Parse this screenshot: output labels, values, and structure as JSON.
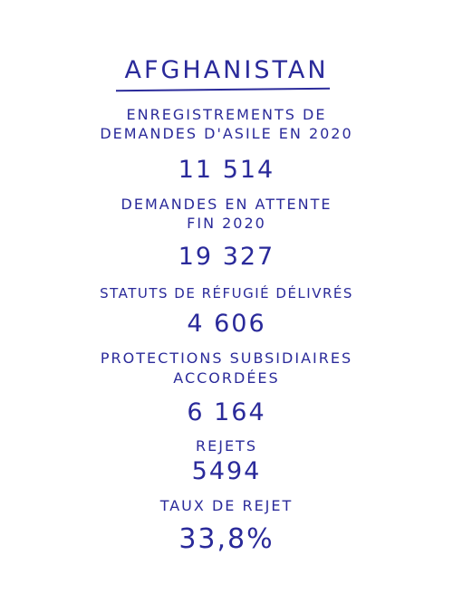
{
  "title": "AFGHANISTAN",
  "stats": [
    {
      "label_line1": "ENREGISTREMENTS DE",
      "label_line2": "DEMANDES D'ASILE EN 2020",
      "value": "11 514"
    },
    {
      "label_line1": "DEMANDES EN ATTENTE",
      "label_line2": "FIN 2020",
      "value": "19 327"
    },
    {
      "label_line1": "STATUTS DE RÉFUGIÉ DÉLIVRÉS",
      "label_line2": "",
      "value": "4 606"
    },
    {
      "label_line1": "PROTECTIONS SUBSIDIAIRES",
      "label_line2": "ACCORDÉES",
      "value": "6 164"
    },
    {
      "label_line1": "REJETS",
      "label_line2": "",
      "value": "5494"
    },
    {
      "label_line1": "TAUX DE REJET",
      "label_line2": "",
      "value": "33,8%"
    }
  ],
  "colors": {
    "ink": "#2a2a9a",
    "background": "#ffffff"
  }
}
